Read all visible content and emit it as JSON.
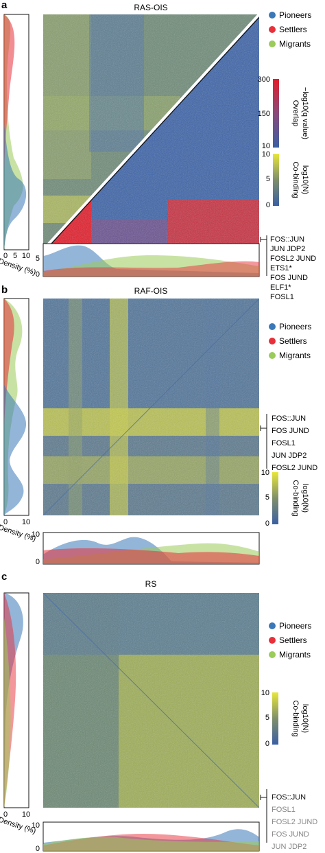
{
  "legend": {
    "pioneers": "Pioneers",
    "settlers": "Settlers",
    "migrants": "Migrants"
  },
  "colors": {
    "pioneers": "#3b78b8",
    "settlers": "#e8303a",
    "migrants": "#9bcb5a",
    "heat_low": "#3a5fa4",
    "heat_mid": "#7f8f6a",
    "heat_high": "#e7e63a",
    "overlap_high": "#e21c2a"
  },
  "axis": {
    "density_label": "Density (%)",
    "density_ticks_x": [
      "0",
      "5",
      "10"
    ],
    "density_ticks_x_bc": [
      "0",
      "10"
    ],
    "density_ticks_y": [
      "0",
      "5"
    ],
    "density_ticks_y_bc": [
      "0",
      "10"
    ]
  },
  "panels": [
    {
      "letter": "a",
      "title": "RAS-OIS",
      "colorbars": [
        {
          "label_line1": "Overlap",
          "label_line2": "−log10(q value)",
          "ticks": [
            "300",
            "150",
            "10"
          ]
        },
        {
          "label_line1": "Co-binding",
          "label_line2": "log10(N)",
          "ticks": [
            "10",
            "5",
            "0"
          ]
        }
      ],
      "tfs": [
        "FOS::JUN",
        "JUN JDP2",
        "FOSL2 JUND",
        "ETS1*",
        "FOS JUND",
        "ELF1*",
        "FOSL1"
      ]
    },
    {
      "letter": "b",
      "title": "RAF-OIS",
      "colorbars": [
        {
          "label_line1": "Co-binding",
          "label_line2": "log10(N)",
          "ticks": [
            "10",
            "5",
            "0"
          ]
        }
      ],
      "tfs": [
        "FOS::JUN",
        "FOS JUND",
        "FOSL1",
        "JUN JDP2",
        "FOSL2 JUND"
      ]
    },
    {
      "letter": "c",
      "title": "RS",
      "colorbars": [
        {
          "label_line1": "Co-binding",
          "label_line2": "log10(N)",
          "ticks": [
            "10",
            "5",
            "0"
          ]
        }
      ],
      "tfs": [
        "FOS::JUN",
        "FOSL1",
        "FOSL2 JUND",
        "FOS JUND",
        "JUN JDP2"
      ]
    }
  ]
}
